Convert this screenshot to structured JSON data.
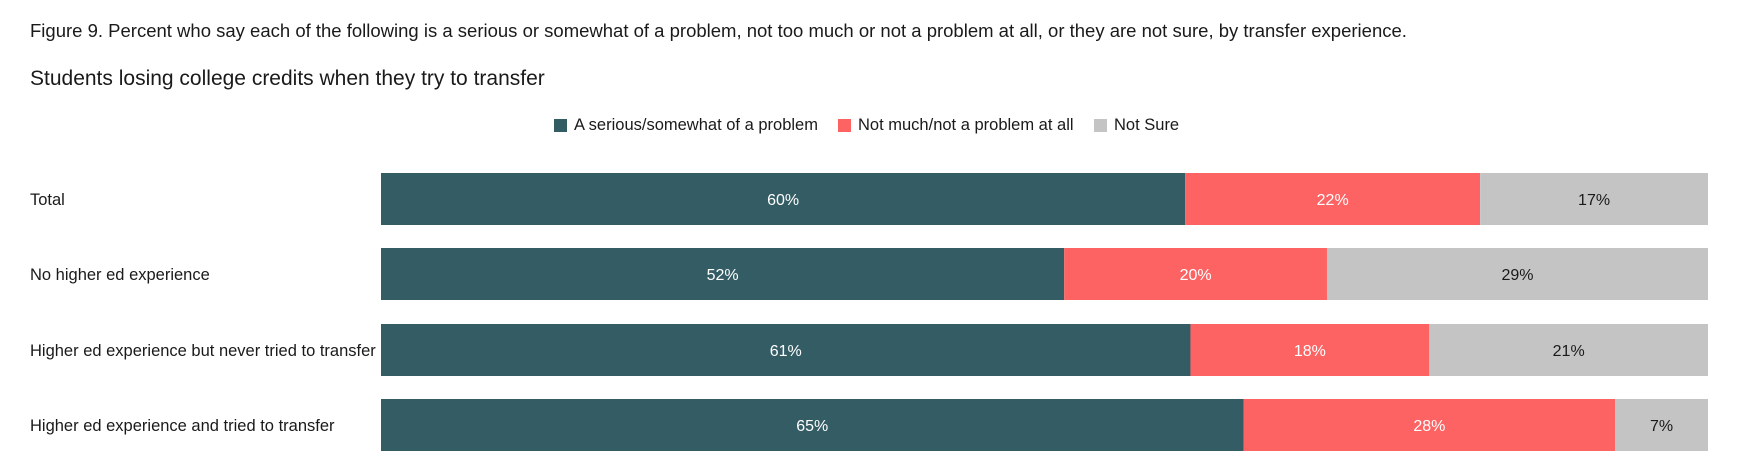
{
  "caption": {
    "figure_label": "Figure 9",
    "text": ". Percent who say each of the following is a serious or somewhat of a problem, not too much or not a problem at all, or they are not sure, by transfer experience."
  },
  "chart_data": {
    "type": "bar",
    "orientation": "horizontal",
    "stacked": true,
    "title": "Students losing college credits when they try to transfer",
    "categories": [
      "Total",
      "No higher ed experience",
      "Higher ed experience but never tried to transfer",
      "Higher ed experience and tried to transfer"
    ],
    "series": [
      {
        "name": "A serious/somewhat of a problem",
        "color": "#345c64",
        "text_color": "#ffffff",
        "values": [
          60,
          52,
          61,
          65
        ]
      },
      {
        "name": "Not much/not a problem at all",
        "color": "#fe6363",
        "text_color": "#ffffff",
        "values": [
          22,
          20,
          18,
          28
        ]
      },
      {
        "name": "Not Sure",
        "color": "#c4c4c4",
        "text_color": "#1a1a1a",
        "values": [
          17,
          29,
          21,
          7
        ]
      }
    ],
    "value_suffix": "%",
    "legend": "top-center",
    "grid": false
  }
}
